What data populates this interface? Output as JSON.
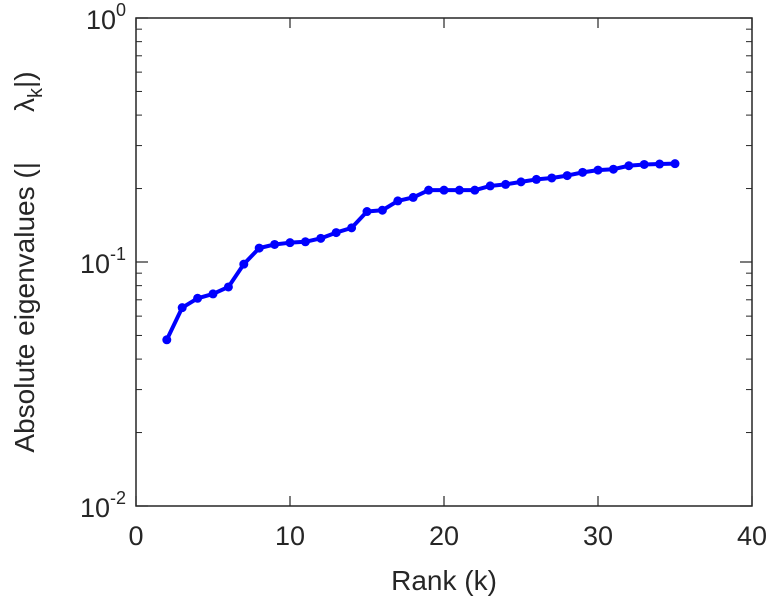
{
  "chart_data": {
    "type": "line",
    "xlabel": "Rank (k)",
    "ylabel": "Absolute eigenvalues (|     λk|)",
    "ylabel_parts": {
      "prefix": "Absolute eigenvalues (|",
      "symbol": "λ",
      "subscript": "k",
      "suffix": "|)"
    },
    "xlim": [
      0,
      40
    ],
    "ylim": [
      0.01,
      1
    ],
    "yscale": "log",
    "grid": false,
    "legend": "none",
    "x_ticks": [
      {
        "value": 0,
        "label": "0"
      },
      {
        "value": 10,
        "label": "10"
      },
      {
        "value": 20,
        "label": "20"
      },
      {
        "value": 30,
        "label": "30"
      },
      {
        "value": 40,
        "label": "40"
      }
    ],
    "y_ticks": [
      {
        "value": 0.01,
        "base": "10",
        "exp": "-2"
      },
      {
        "value": 0.1,
        "base": "10",
        "exp": "-1"
      },
      {
        "value": 1,
        "base": "10",
        "exp": "0"
      }
    ],
    "series": [
      {
        "color": "#0000ff",
        "marker": "circle",
        "x": [
          2,
          3,
          4,
          5,
          6,
          7,
          8,
          9,
          10,
          11,
          12,
          13,
          14,
          15,
          16,
          17,
          18,
          19,
          20,
          21,
          22,
          23,
          24,
          25,
          26,
          27,
          28,
          29,
          30,
          31,
          32,
          33,
          34,
          35
        ],
        "y": [
          0.048,
          0.065,
          0.071,
          0.074,
          0.079,
          0.098,
          0.114,
          0.118,
          0.12,
          0.121,
          0.125,
          0.132,
          0.138,
          0.161,
          0.163,
          0.178,
          0.184,
          0.197,
          0.197,
          0.197,
          0.197,
          0.205,
          0.208,
          0.213,
          0.218,
          0.221,
          0.226,
          0.233,
          0.238,
          0.24,
          0.248,
          0.251,
          0.252,
          0.253
        ]
      }
    ]
  }
}
